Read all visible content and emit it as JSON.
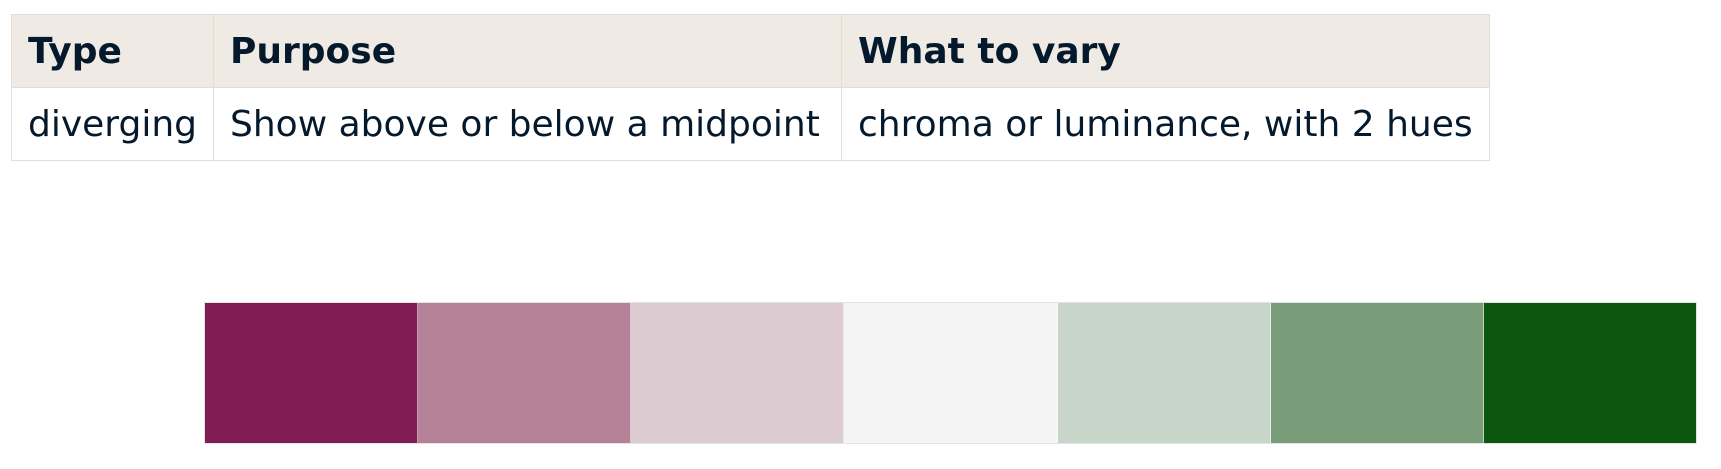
{
  "table": {
    "headers": [
      "Type",
      "Purpose",
      "What to vary"
    ],
    "rows": [
      [
        "diverging",
        "Show above or below a midpoint",
        "chroma or luminance, with 2 hues"
      ]
    ]
  },
  "palette": {
    "colors": [
      "#821c55",
      "#b48197",
      "#ddcbd2",
      "#f4f4f4",
      "#c8d6ca",
      "#789d78",
      "#0c560f"
    ]
  }
}
